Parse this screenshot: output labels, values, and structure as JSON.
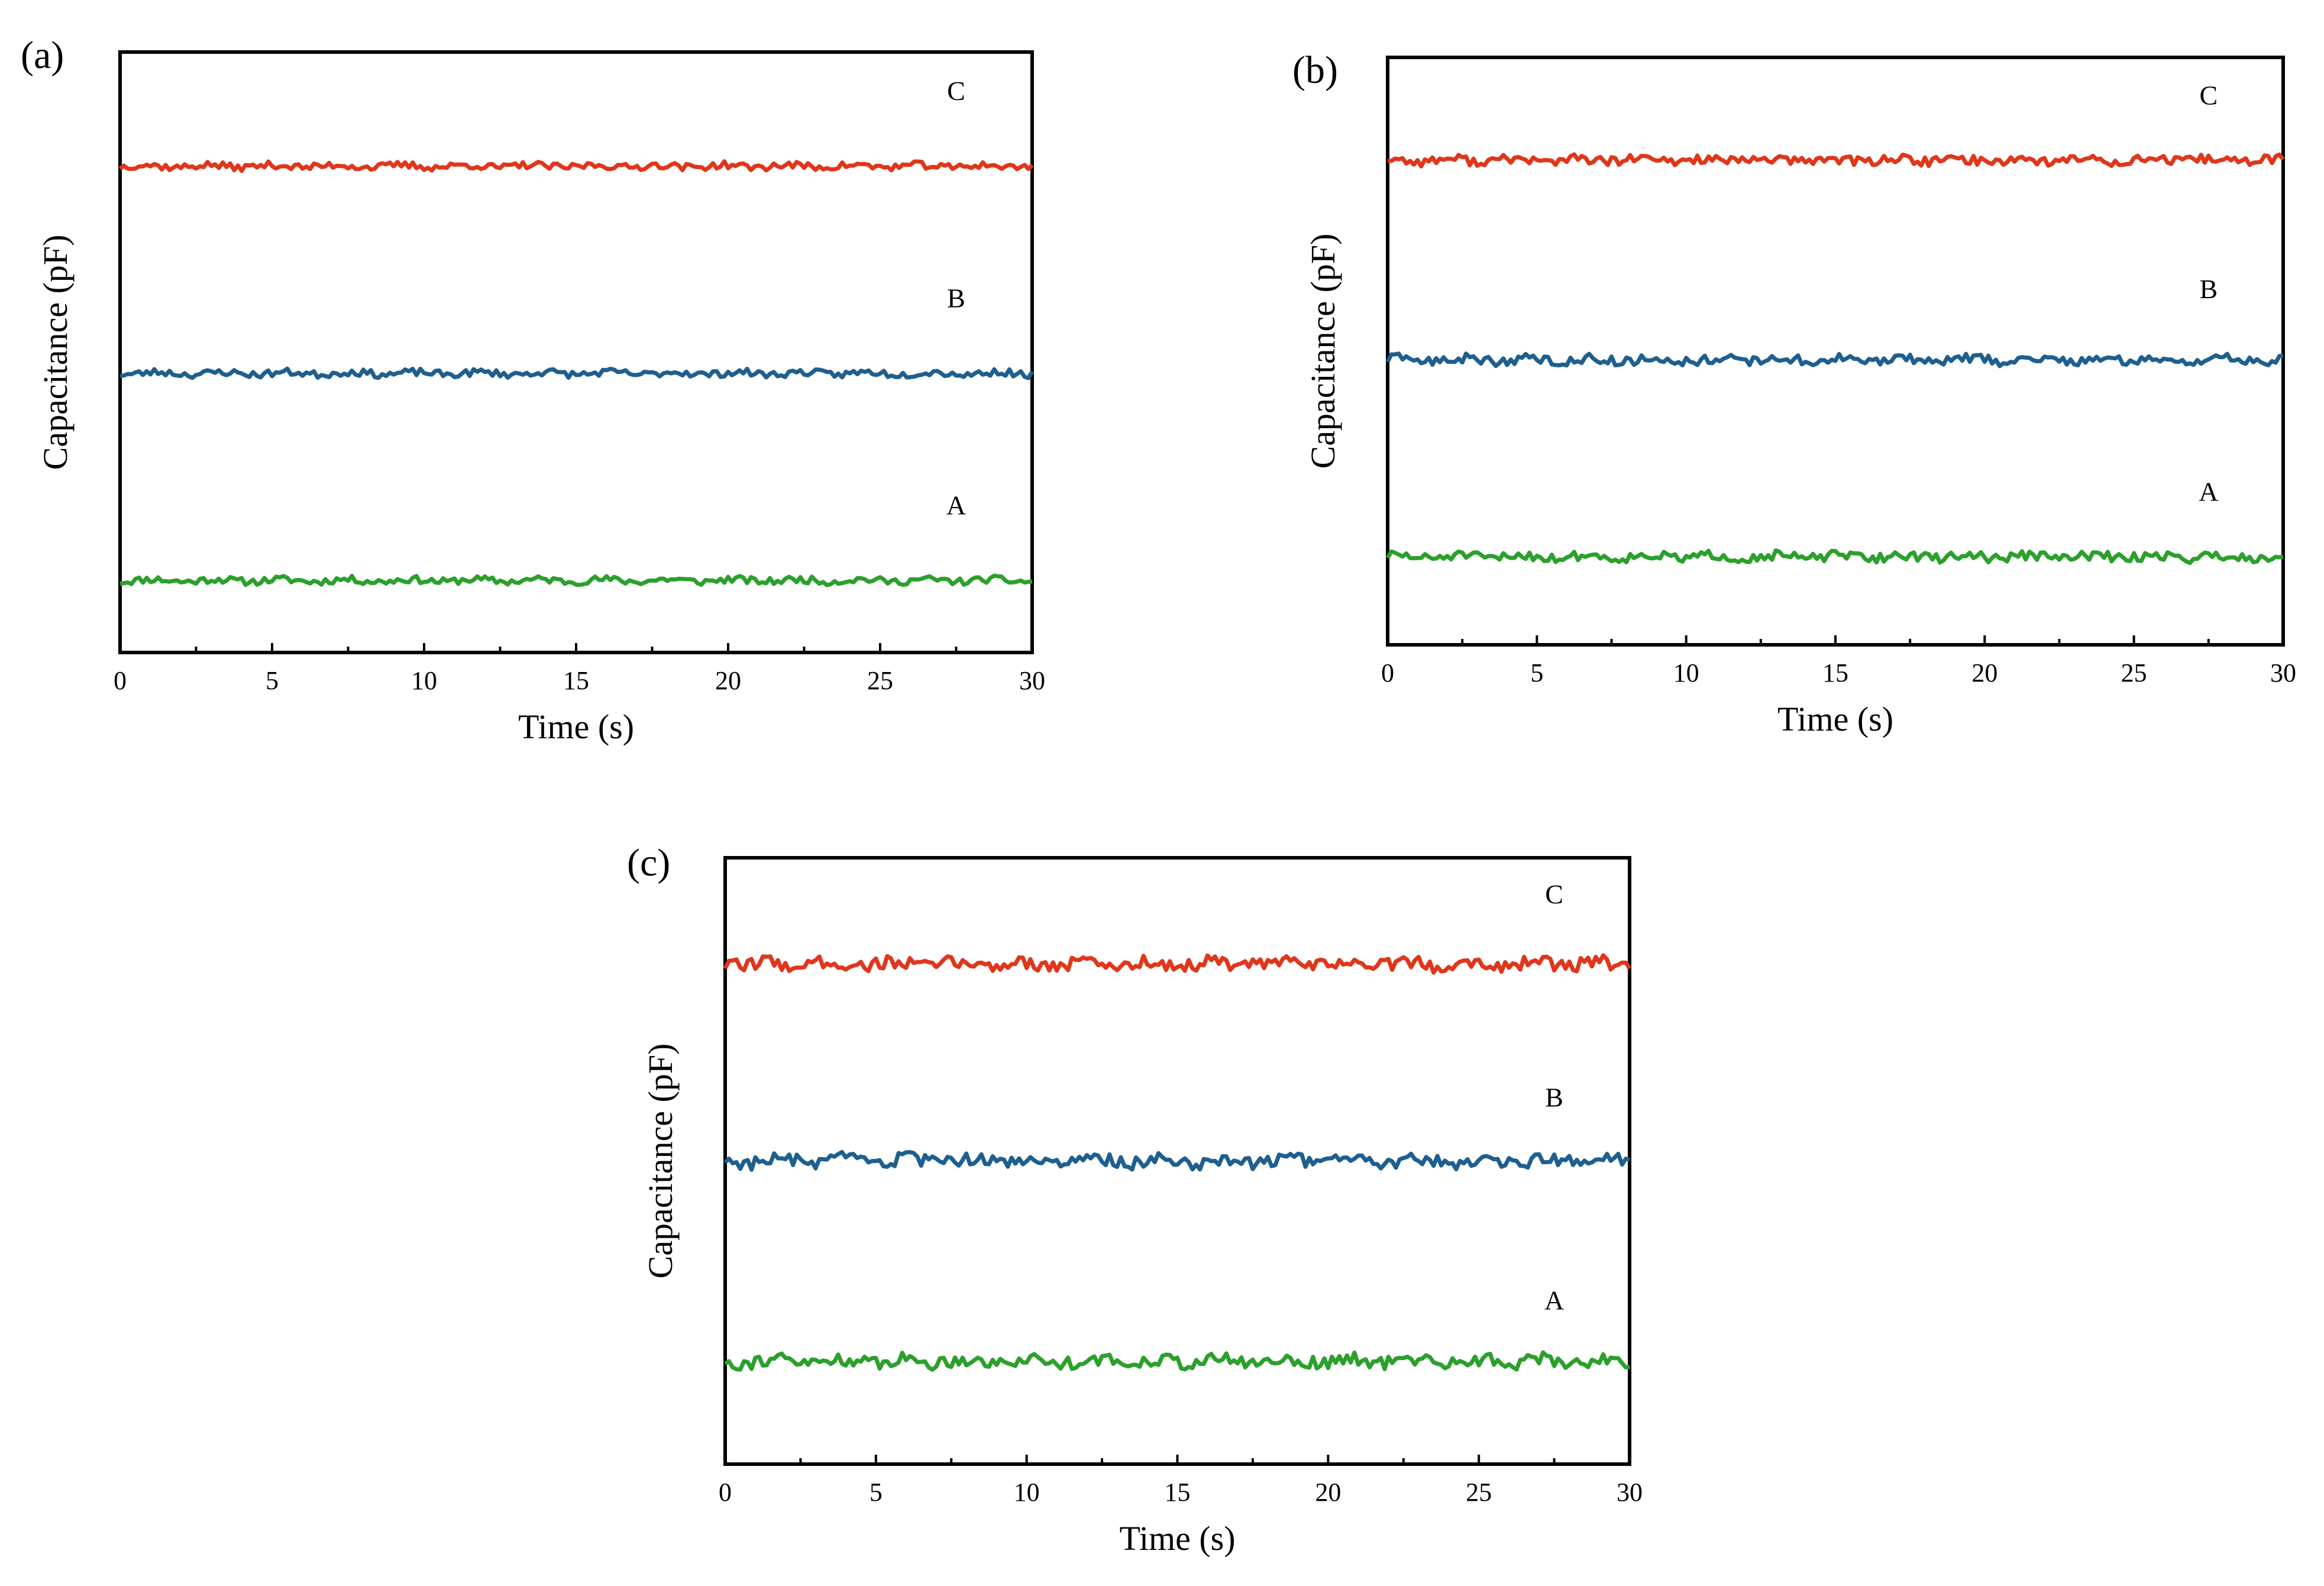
{
  "figure": {
    "chart_data": [
      {
        "type": "line",
        "panel_label": "(a)",
        "xlabel": "Time (s)",
        "ylabel": "Capacitance (pF)",
        "xlim": [
          0,
          30
        ],
        "ylim": [
          0,
          1
        ],
        "xticks": [
          0,
          5,
          10,
          15,
          20,
          25,
          30
        ],
        "x_tick_labels": [
          "0",
          "5",
          "10",
          "15",
          "20",
          "25",
          "30"
        ],
        "grid": false,
        "series": [
          {
            "name": "A",
            "color": "#2ca02c",
            "level": 0.12,
            "noise": 0.006,
            "seed": 11
          },
          {
            "name": "B",
            "color": "#1f5f8f",
            "level": 0.465,
            "noise": 0.006,
            "seed": 23
          },
          {
            "name": "C",
            "color": "#e0361b",
            "level": 0.81,
            "noise": 0.006,
            "seed": 37
          }
        ],
        "labels": [
          {
            "text": "A",
            "x": 27.5,
            "y": 0.23
          },
          {
            "text": "B",
            "x": 27.5,
            "y": 0.575
          },
          {
            "text": "C",
            "x": 27.5,
            "y": 0.92
          }
        ]
      },
      {
        "type": "line",
        "panel_label": "(b)",
        "xlabel": "Time (s)",
        "ylabel": "Capacitance (pF)",
        "xlim": [
          0,
          30
        ],
        "ylim": [
          0,
          1
        ],
        "xticks": [
          0,
          5,
          10,
          15,
          20,
          25,
          30
        ],
        "x_tick_labels": [
          "0",
          "5",
          "10",
          "15",
          "20",
          "25",
          "30"
        ],
        "grid": false,
        "series": [
          {
            "name": "A",
            "color": "#2ca02c",
            "level": 0.15,
            "noise": 0.008,
            "seed": 51
          },
          {
            "name": "B",
            "color": "#1f5f8f",
            "level": 0.485,
            "noise": 0.008,
            "seed": 63
          },
          {
            "name": "C",
            "color": "#e0361b",
            "level": 0.825,
            "noise": 0.008,
            "seed": 77
          }
        ],
        "labels": [
          {
            "text": "A",
            "x": 27.5,
            "y": 0.245
          },
          {
            "text": "B",
            "x": 27.5,
            "y": 0.59
          },
          {
            "text": "C",
            "x": 27.5,
            "y": 0.92
          }
        ]
      },
      {
        "type": "line",
        "panel_label": "(c)",
        "xlabel": "Time (s)",
        "ylabel": "Capacitance (pF)",
        "xlim": [
          0,
          30
        ],
        "ylim": [
          0,
          1
        ],
        "xticks": [
          0,
          5,
          10,
          15,
          20,
          25,
          30
        ],
        "x_tick_labels": [
          "0",
          "5",
          "10",
          "15",
          "20",
          "25",
          "30"
        ],
        "grid": false,
        "series": [
          {
            "name": "A",
            "color": "#2ca02c",
            "level": 0.17,
            "noise": 0.011,
            "seed": 91
          },
          {
            "name": "B",
            "color": "#1f5f8f",
            "level": 0.5,
            "noise": 0.011,
            "seed": 103
          },
          {
            "name": "C",
            "color": "#e0361b",
            "level": 0.825,
            "noise": 0.011,
            "seed": 117
          }
        ],
        "labels": [
          {
            "text": "A",
            "x": 27.5,
            "y": 0.255
          },
          {
            "text": "B",
            "x": 27.5,
            "y": 0.59
          },
          {
            "text": "C",
            "x": 27.5,
            "y": 0.925
          }
        ]
      }
    ]
  }
}
